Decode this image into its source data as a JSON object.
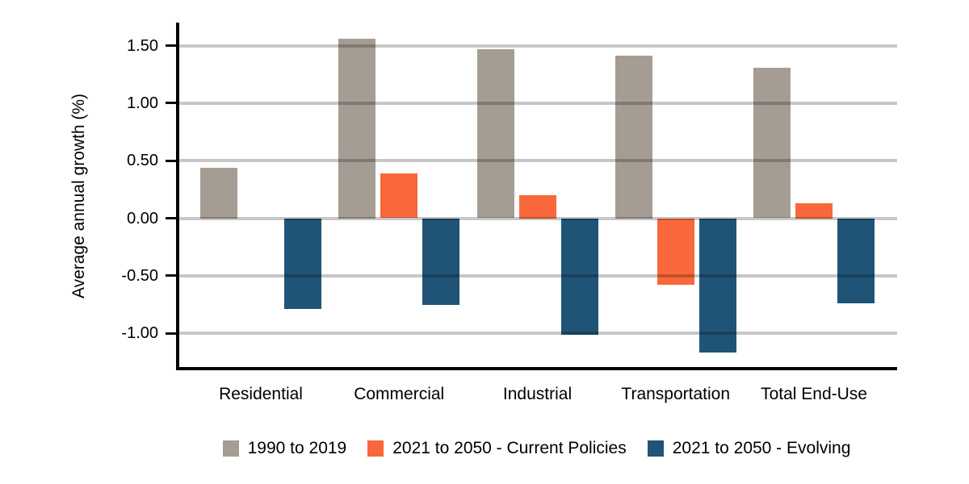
{
  "chart_data": {
    "type": "bar",
    "title": "",
    "ylabel": "Average annual growth (%)",
    "xlabel": "",
    "categories": [
      "Residential",
      "Commercial",
      "Industrial",
      "Transportation",
      "Total End-Use"
    ],
    "series": [
      {
        "name": "1990 to 2019",
        "color": "#A59D93",
        "values": [
          0.44,
          1.56,
          1.47,
          1.41,
          1.31
        ]
      },
      {
        "name": "2021 to 2050 - Current Policies",
        "color": "#F9683A",
        "values": [
          0.0,
          0.39,
          0.2,
          -0.58,
          0.13
        ]
      },
      {
        "name": "2021 to 2050 - Evolving",
        "color": "#1F5477",
        "values": [
          -0.79,
          -0.75,
          -1.01,
          -1.17,
          -0.74
        ]
      }
    ],
    "yticks": [
      "1.50",
      "1.00",
      "0.50",
      "0.00",
      "-0.50",
      "-1.00"
    ],
    "ylim": [
      -1.3,
      1.7
    ],
    "grid": "horizontal",
    "legend_position": "bottom",
    "colors": {
      "gridline": "#C7C7C7",
      "axis": "#000000",
      "background": "#FFFFFF"
    }
  }
}
